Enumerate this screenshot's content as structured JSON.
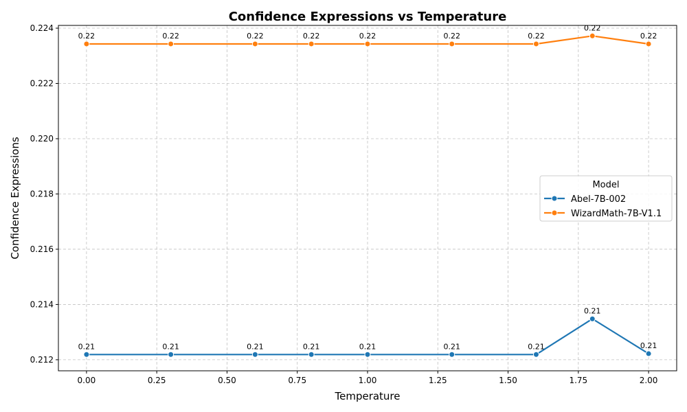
{
  "chart_data": {
    "type": "line",
    "title": "Confidence Expressions vs Temperature",
    "xlabel": "Temperature",
    "ylabel": "Confidence Expressions",
    "xlim": [
      -0.1,
      2.1
    ],
    "ylim": [
      0.2116,
      0.2241
    ],
    "x_ticks": [
      0.0,
      0.25,
      0.5,
      0.75,
      1.0,
      1.25,
      1.5,
      1.75,
      2.0
    ],
    "x_tick_labels": [
      "0.00",
      "0.25",
      "0.50",
      "0.75",
      "1.00",
      "1.25",
      "1.50",
      "1.75",
      "2.00"
    ],
    "y_ticks": [
      0.212,
      0.214,
      0.216,
      0.218,
      0.22,
      0.222,
      0.224
    ],
    "y_tick_labels": [
      "0.212",
      "0.214",
      "0.216",
      "0.218",
      "0.220",
      "0.222",
      "0.224"
    ],
    "grid": true,
    "legend": {
      "title": "Model",
      "placement": "center-right"
    },
    "x": [
      0.0,
      0.3,
      0.6,
      0.8,
      1.0,
      1.3,
      1.6,
      1.8,
      2.0
    ],
    "series": [
      {
        "name": "Abel-7B-002",
        "color": "#1f77b4",
        "values": [
          0.21219,
          0.21219,
          0.21219,
          0.21219,
          0.21219,
          0.21219,
          0.21219,
          0.21348,
          0.21222
        ],
        "labels": [
          "0.21",
          "0.21",
          "0.21",
          "0.21",
          "0.21",
          "0.21",
          "0.21",
          "0.21",
          "0.21"
        ]
      },
      {
        "name": "WizardMath-7B-V1.1",
        "color": "#ff7f0e",
        "values": [
          0.22343,
          0.22343,
          0.22343,
          0.22343,
          0.22343,
          0.22343,
          0.22343,
          0.22372,
          0.22343
        ],
        "labels": [
          "0.22",
          "0.22",
          "0.22",
          "0.22",
          "0.22",
          "0.22",
          "0.22",
          "0.22",
          "0.22"
        ]
      }
    ]
  }
}
